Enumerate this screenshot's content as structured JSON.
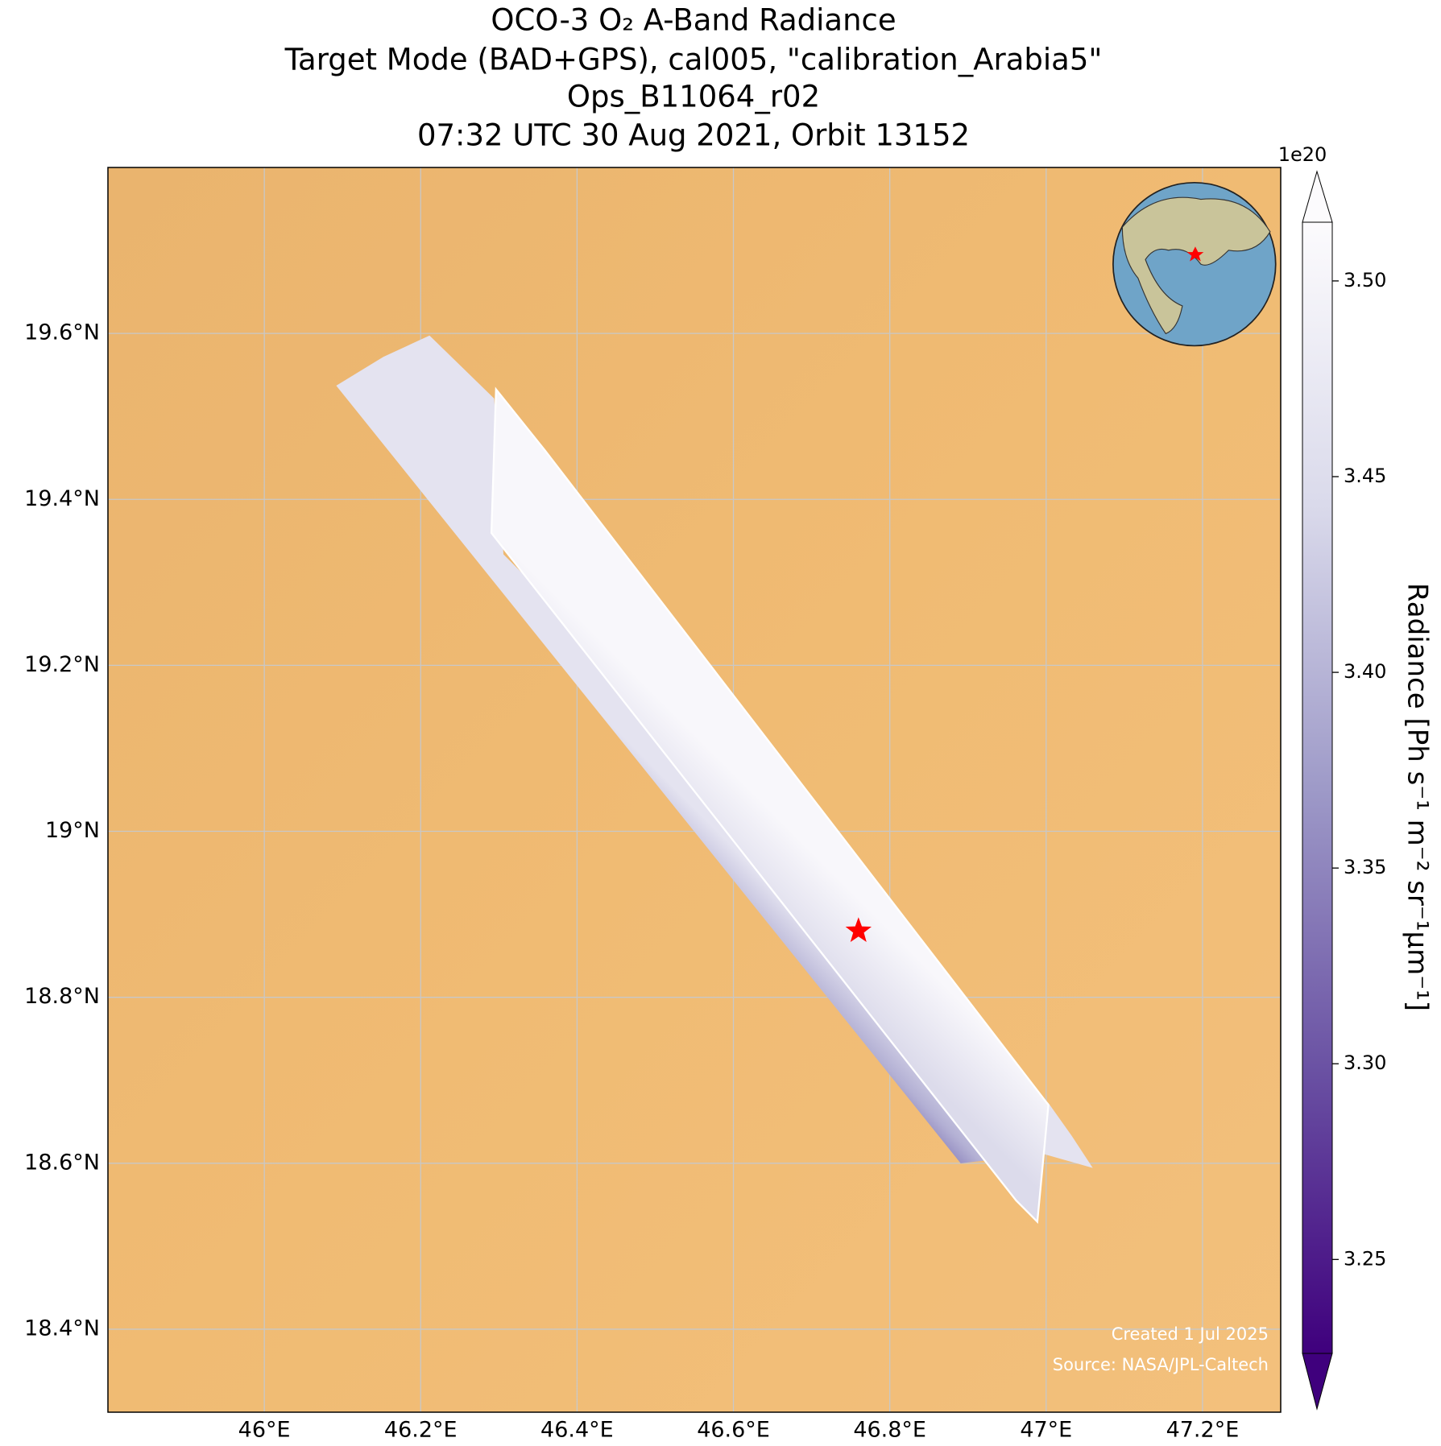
{
  "title": [
    "OCO-3 O₂ A-Band Radiance",
    "Target Mode (BAD+GPS), cal005, \"calibration_Arabia5\"",
    "Ops_B11064_r02",
    "07:32 UTC 30 Aug 2021, Orbit 13152"
  ],
  "map": {
    "xlim": [
      45.8,
      47.3
    ],
    "ylim": [
      18.3,
      19.8
    ],
    "grid": true,
    "target": [
      46.76,
      18.88
    ],
    "xticks": [
      {
        "value": 46.0,
        "label": "46°E"
      },
      {
        "value": 46.2,
        "label": "46.2°E"
      },
      {
        "value": 46.4,
        "label": "46.4°E"
      },
      {
        "value": 46.6,
        "label": "46.6°E"
      },
      {
        "value": 46.8,
        "label": "46.8°E"
      },
      {
        "value": 47.0,
        "label": "47°E"
      },
      {
        "value": 47.2,
        "label": "47.2°E"
      }
    ],
    "yticks": [
      {
        "value": 18.4,
        "label": "18.4°N"
      },
      {
        "value": 18.6,
        "label": "18.6°N"
      },
      {
        "value": 18.8,
        "label": "18.8°N"
      },
      {
        "value": 19.0,
        "label": "19°N"
      },
      {
        "value": 19.2,
        "label": "19.2°N"
      },
      {
        "value": 19.4,
        "label": "19.4°N"
      },
      {
        "value": 19.6,
        "label": "19.6°N"
      }
    ]
  },
  "colorbar": {
    "label": "Radiance [Ph s⁻¹ m⁻² sr⁻¹µm⁻¹]",
    "exponent_label": "1e20",
    "lim": [
      3.226,
      3.515
    ],
    "ticks": [
      {
        "value": 3.25,
        "label": "3.25"
      },
      {
        "value": 3.3,
        "label": "3.30"
      },
      {
        "value": 3.35,
        "label": "3.35"
      },
      {
        "value": 3.4,
        "label": "3.40"
      },
      {
        "value": 3.45,
        "label": "3.45"
      },
      {
        "value": 3.5,
        "label": "3.50"
      }
    ]
  },
  "credits": [
    "Created 1 Jul 2025",
    "Source: NASA/JPL-Caltech"
  ]
}
